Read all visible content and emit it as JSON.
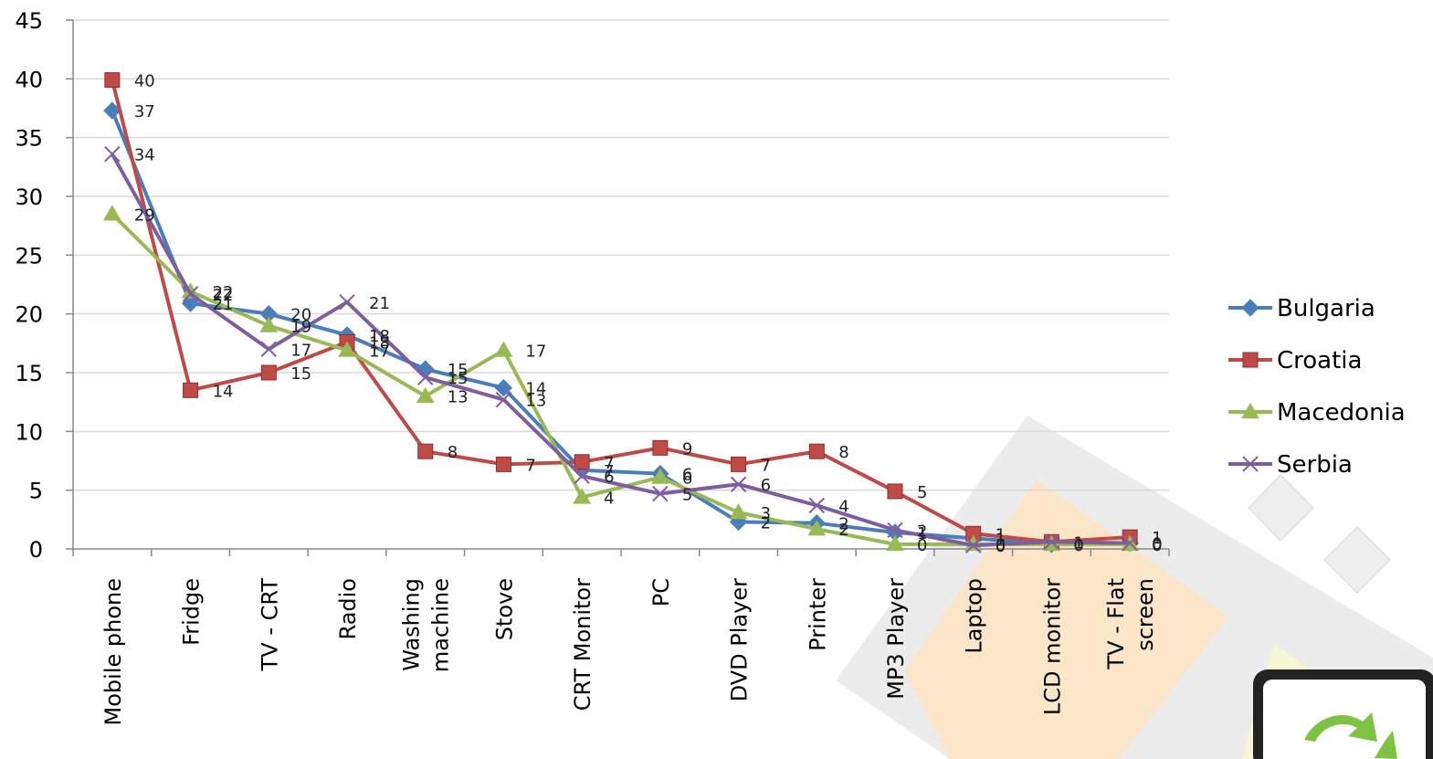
{
  "chart_data": {
    "type": "line",
    "title": "",
    "xlabel": "",
    "ylabel": "",
    "ylim": [
      0,
      45
    ],
    "yticks": [
      0,
      5,
      10,
      15,
      20,
      25,
      30,
      35,
      40,
      45
    ],
    "grid": true,
    "legend_position": "right",
    "categories": [
      [
        "Mobile phone"
      ],
      [
        "Fridge"
      ],
      [
        "TV - CRT"
      ],
      [
        "Radio"
      ],
      [
        "Washing",
        "machine"
      ],
      [
        "Stove"
      ],
      [
        "CRT Monitor"
      ],
      [
        "PC"
      ],
      [
        "DVD Player"
      ],
      [
        "Printer"
      ],
      [
        "MP3 Player"
      ],
      [
        "Laptop"
      ],
      [
        "LCD monitor"
      ],
      [
        "TV - Flat",
        "screen"
      ]
    ],
    "series": [
      {
        "name": "Bulgaria",
        "color": "#4A7EBB",
        "marker": "diamond",
        "values": [
          37.3,
          20.9,
          20.0,
          18.2,
          15.3,
          13.7,
          6.7,
          6.4,
          2.3,
          2.2,
          1.4,
          0.9,
          0.4,
          0.5
        ],
        "labels": [
          "37",
          "21",
          "20",
          "18",
          "15",
          "14",
          "7",
          "6",
          "2",
          "2",
          "1",
          "1",
          "0",
          "0"
        ]
      },
      {
        "name": "Croatia",
        "color": "#BE4B48",
        "marker": "square",
        "values": [
          39.9,
          13.5,
          15.0,
          17.6,
          8.3,
          7.2,
          7.4,
          8.6,
          7.2,
          8.3,
          4.9,
          1.3,
          0.6,
          1.0
        ],
        "labels": [
          "40",
          "14",
          "15",
          "18",
          "8",
          "7",
          "7",
          "9",
          "7",
          "8",
          "5",
          "1",
          "1",
          "1"
        ]
      },
      {
        "name": "Macedonia",
        "color": "#98B954",
        "marker": "triangle",
        "values": [
          28.5,
          21.9,
          19.0,
          16.9,
          13.0,
          16.9,
          4.4,
          6.1,
          3.1,
          1.7,
          0.4,
          0.4,
          0.4,
          0.4
        ],
        "labels": [
          "29",
          "22",
          "19",
          "17",
          "13",
          "17",
          "4",
          "6",
          "3",
          "2",
          "0",
          "0",
          "0",
          "0"
        ]
      },
      {
        "name": "Serbia",
        "color": "#7D5FA0",
        "marker": "x",
        "values": [
          33.6,
          21.7,
          17.0,
          21.0,
          14.6,
          12.7,
          6.2,
          4.7,
          5.5,
          3.7,
          1.6,
          0.3,
          0.6,
          0.5
        ],
        "labels": [
          "34",
          "22",
          "17",
          "21",
          "15",
          "13",
          "6",
          "5",
          "6",
          "4",
          "2",
          "0",
          "1",
          "0"
        ]
      }
    ]
  },
  "decoration": {
    "watermark_icon": "recycling-icon"
  }
}
